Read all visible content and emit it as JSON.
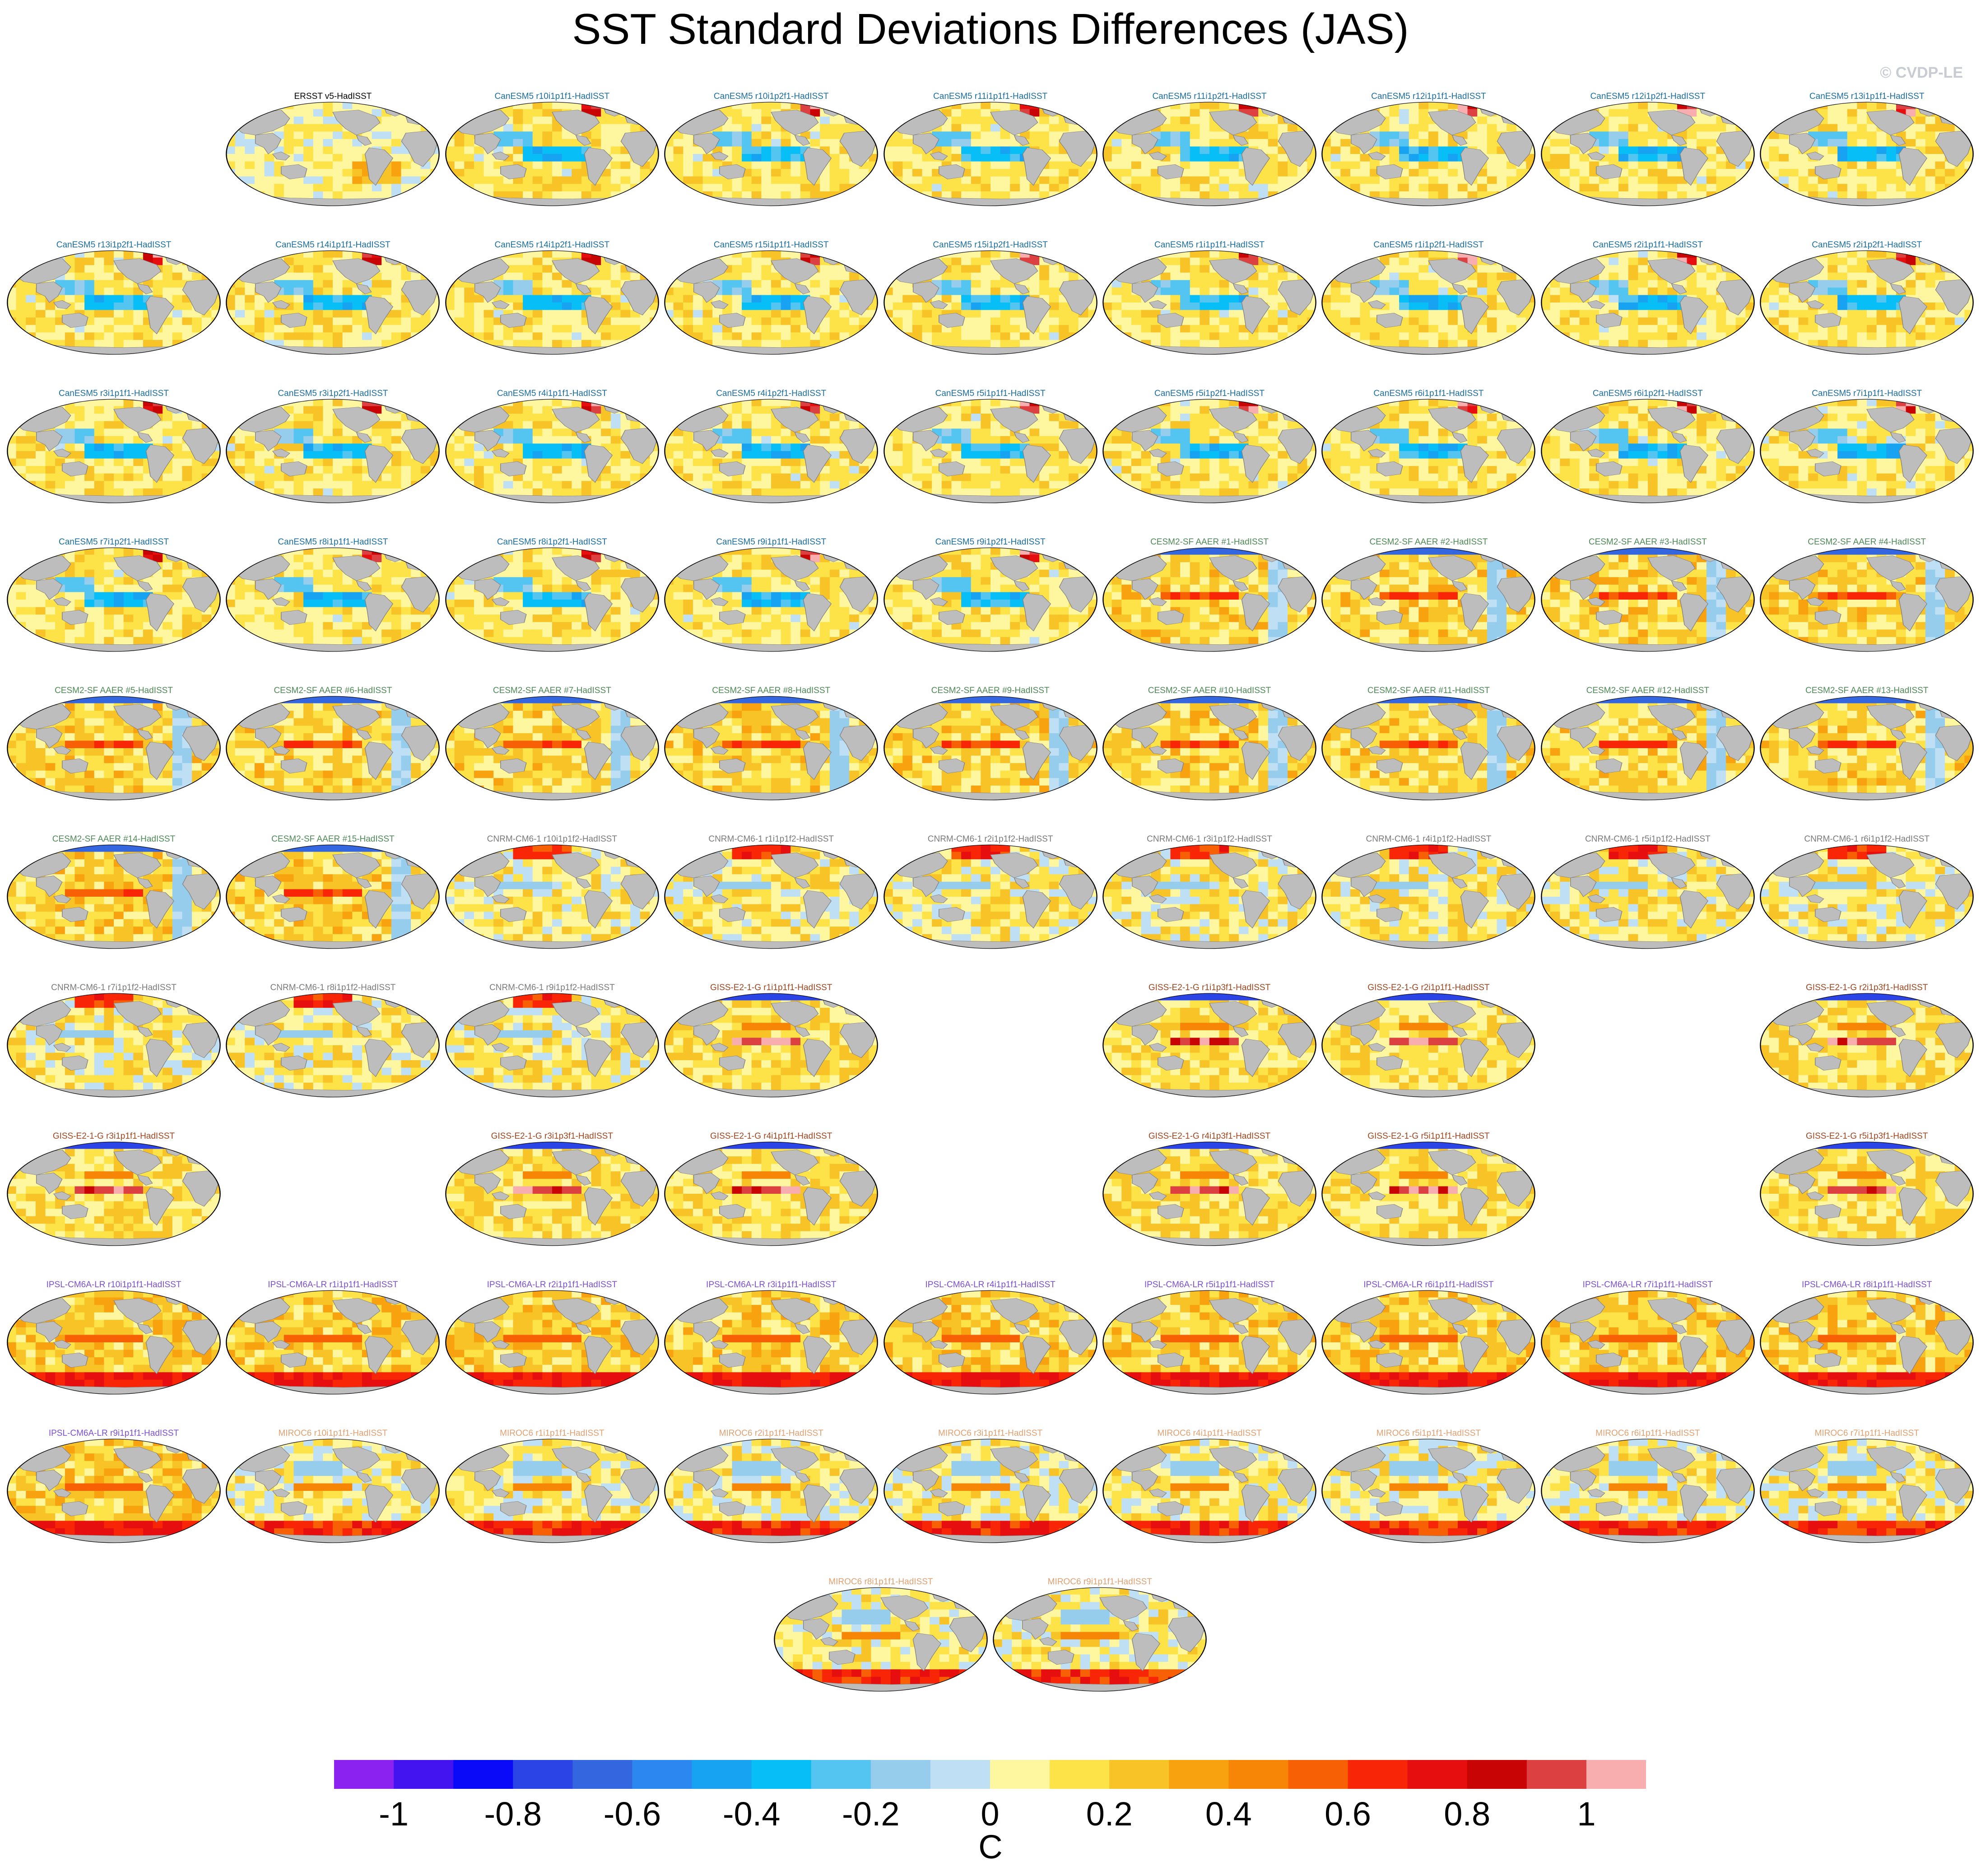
{
  "title": "SST Standard Deviations Differences (JAS)",
  "credit": "© CVDP-LE",
  "chart_data": {
    "type": "heatmap",
    "title": "SST Standard Deviations Differences (JAS)",
    "description_units": "C",
    "colorbar": {
      "units": "C",
      "tick_labels": [
        "-1",
        "-0.8",
        "-0.6",
        "-0.4",
        "-0.2",
        "0",
        "0.2",
        "0.4",
        "0.6",
        "0.8",
        "1"
      ],
      "tick_values": [
        -1,
        -0.8,
        -0.6,
        -0.4,
        -0.2,
        0,
        0.2,
        0.4,
        0.6,
        0.8,
        1
      ],
      "levels": [
        -1.1,
        -1.0,
        -0.9,
        -0.8,
        -0.7,
        -0.6,
        -0.5,
        -0.4,
        -0.3,
        -0.2,
        -0.1,
        0,
        0.1,
        0.2,
        0.3,
        0.4,
        0.5,
        0.6,
        0.7,
        0.8,
        0.9,
        1.0,
        1.1
      ],
      "colors": [
        "#8b22f0",
        "#4414f0",
        "#0a0af8",
        "#2a44e6",
        "#3466e0",
        "#2c88f0",
        "#18a2f2",
        "#08bef6",
        "#54c4f0",
        "#96ccec",
        "#bfe0f4",
        "#fff7a0",
        "#fde248",
        "#f8c326",
        "#f8a210",
        "#f88606",
        "#f86006",
        "#f82606",
        "#e60e0e",
        "#c80404",
        "#dc4040",
        "#f8aeae"
      ]
    },
    "panels": [
      {
        "label": "ERSST v5-HadISST",
        "model": "ERSST",
        "pattern": "obs",
        "row": 0,
        "col": 1,
        "color": "#000000"
      },
      {
        "label": "CanESM5 r10i1p1f1-HadISST",
        "model": "CanESM5",
        "pattern": "can",
        "row": 0,
        "col": 2,
        "color": "#1a6ea0"
      },
      {
        "label": "CanESM5 r10i1p2f1-HadISST",
        "model": "CanESM5",
        "pattern": "can",
        "row": 0,
        "col": 3,
        "color": "#1a6ea0"
      },
      {
        "label": "CanESM5 r11i1p1f1-HadISST",
        "model": "CanESM5",
        "pattern": "can",
        "row": 0,
        "col": 4,
        "color": "#1a6ea0"
      },
      {
        "label": "CanESM5 r11i1p2f1-HadISST",
        "model": "CanESM5",
        "pattern": "can",
        "row": 0,
        "col": 5,
        "color": "#1a6ea0"
      },
      {
        "label": "CanESM5 r12i1p1f1-HadISST",
        "model": "CanESM5",
        "pattern": "can",
        "row": 0,
        "col": 6,
        "color": "#1a6ea0"
      },
      {
        "label": "CanESM5 r12i1p2f1-HadISST",
        "model": "CanESM5",
        "pattern": "can",
        "row": 0,
        "col": 7,
        "color": "#1a6ea0"
      },
      {
        "label": "CanESM5 r13i1p1f1-HadISST",
        "model": "CanESM5",
        "pattern": "can",
        "row": 0,
        "col": 8,
        "color": "#1a6ea0"
      },
      {
        "label": "CanESM5 r13i1p2f1-HadISST",
        "model": "CanESM5",
        "pattern": "can",
        "row": 1,
        "col": 0,
        "color": "#1a6ea0"
      },
      {
        "label": "CanESM5 r14i1p1f1-HadISST",
        "model": "CanESM5",
        "pattern": "can",
        "row": 1,
        "col": 1,
        "color": "#1a6ea0"
      },
      {
        "label": "CanESM5 r14i1p2f1-HadISST",
        "model": "CanESM5",
        "pattern": "can",
        "row": 1,
        "col": 2,
        "color": "#1a6ea0"
      },
      {
        "label": "CanESM5 r15i1p1f1-HadISST",
        "model": "CanESM5",
        "pattern": "can",
        "row": 1,
        "col": 3,
        "color": "#1a6ea0"
      },
      {
        "label": "CanESM5 r15i1p2f1-HadISST",
        "model": "CanESM5",
        "pattern": "can",
        "row": 1,
        "col": 4,
        "color": "#1a6ea0"
      },
      {
        "label": "CanESM5 r1i1p1f1-HadISST",
        "model": "CanESM5",
        "pattern": "can",
        "row": 1,
        "col": 5,
        "color": "#1a6ea0"
      },
      {
        "label": "CanESM5 r1i1p2f1-HadISST",
        "model": "CanESM5",
        "pattern": "can",
        "row": 1,
        "col": 6,
        "color": "#1a6ea0"
      },
      {
        "label": "CanESM5 r2i1p1f1-HadISST",
        "model": "CanESM5",
        "pattern": "can",
        "row": 1,
        "col": 7,
        "color": "#1a6ea0"
      },
      {
        "label": "CanESM5 r2i1p2f1-HadISST",
        "model": "CanESM5",
        "pattern": "can",
        "row": 1,
        "col": 8,
        "color": "#1a6ea0"
      },
      {
        "label": "CanESM5 r3i1p1f1-HadISST",
        "model": "CanESM5",
        "pattern": "can",
        "row": 2,
        "col": 0,
        "color": "#1a6ea0"
      },
      {
        "label": "CanESM5 r3i1p2f1-HadISST",
        "model": "CanESM5",
        "pattern": "can",
        "row": 2,
        "col": 1,
        "color": "#1a6ea0"
      },
      {
        "label": "CanESM5 r4i1p1f1-HadISST",
        "model": "CanESM5",
        "pattern": "can",
        "row": 2,
        "col": 2,
        "color": "#1a6ea0"
      },
      {
        "label": "CanESM5 r4i1p2f1-HadISST",
        "model": "CanESM5",
        "pattern": "can",
        "row": 2,
        "col": 3,
        "color": "#1a6ea0"
      },
      {
        "label": "CanESM5 r5i1p1f1-HadISST",
        "model": "CanESM5",
        "pattern": "can",
        "row": 2,
        "col": 4,
        "color": "#1a6ea0"
      },
      {
        "label": "CanESM5 r5i1p2f1-HadISST",
        "model": "CanESM5",
        "pattern": "can",
        "row": 2,
        "col": 5,
        "color": "#1a6ea0"
      },
      {
        "label": "CanESM5 r6i1p1f1-HadISST",
        "model": "CanESM5",
        "pattern": "can",
        "row": 2,
        "col": 6,
        "color": "#1a6ea0"
      },
      {
        "label": "CanESM5 r6i1p2f1-HadISST",
        "model": "CanESM5",
        "pattern": "can",
        "row": 2,
        "col": 7,
        "color": "#1a6ea0"
      },
      {
        "label": "CanESM5 r7i1p1f1-HadISST",
        "model": "CanESM5",
        "pattern": "can",
        "row": 2,
        "col": 8,
        "color": "#1a6ea0"
      },
      {
        "label": "CanESM5 r7i1p2f1-HadISST",
        "model": "CanESM5",
        "pattern": "can",
        "row": 3,
        "col": 0,
        "color": "#1a6ea0"
      },
      {
        "label": "CanESM5 r8i1p1f1-HadISST",
        "model": "CanESM5",
        "pattern": "can",
        "row": 3,
        "col": 1,
        "color": "#1a6ea0"
      },
      {
        "label": "CanESM5 r8i1p2f1-HadISST",
        "model": "CanESM5",
        "pattern": "can",
        "row": 3,
        "col": 2,
        "color": "#1a6ea0"
      },
      {
        "label": "CanESM5 r9i1p1f1-HadISST",
        "model": "CanESM5",
        "pattern": "can",
        "row": 3,
        "col": 3,
        "color": "#1a6ea0"
      },
      {
        "label": "CanESM5 r9i1p2f1-HadISST",
        "model": "CanESM5",
        "pattern": "can",
        "row": 3,
        "col": 4,
        "color": "#1a6ea0"
      },
      {
        "label": "CESM2-SF AAER #1-HadISST",
        "model": "CESM2-SF AAER",
        "pattern": "cesm",
        "row": 3,
        "col": 5,
        "color": "#4d8a55"
      },
      {
        "label": "CESM2-SF AAER #2-HadISST",
        "model": "CESM2-SF AAER",
        "pattern": "cesm",
        "row": 3,
        "col": 6,
        "color": "#4d8a55"
      },
      {
        "label": "CESM2-SF AAER #3-HadISST",
        "model": "CESM2-SF AAER",
        "pattern": "cesm",
        "row": 3,
        "col": 7,
        "color": "#4d8a55"
      },
      {
        "label": "CESM2-SF AAER #4-HadISST",
        "model": "CESM2-SF AAER",
        "pattern": "cesm",
        "row": 3,
        "col": 8,
        "color": "#4d8a55"
      },
      {
        "label": "CESM2-SF AAER #5-HadISST",
        "model": "CESM2-SF AAER",
        "pattern": "cesm",
        "row": 4,
        "col": 0,
        "color": "#4d8a55"
      },
      {
        "label": "CESM2-SF AAER #6-HadISST",
        "model": "CESM2-SF AAER",
        "pattern": "cesm",
        "row": 4,
        "col": 1,
        "color": "#4d8a55"
      },
      {
        "label": "CESM2-SF AAER #7-HadISST",
        "model": "CESM2-SF AAER",
        "pattern": "cesm",
        "row": 4,
        "col": 2,
        "color": "#4d8a55"
      },
      {
        "label": "CESM2-SF AAER #8-HadISST",
        "model": "CESM2-SF AAER",
        "pattern": "cesm",
        "row": 4,
        "col": 3,
        "color": "#4d8a55"
      },
      {
        "label": "CESM2-SF AAER #9-HadISST",
        "model": "CESM2-SF AAER",
        "pattern": "cesm",
        "row": 4,
        "col": 4,
        "color": "#4d8a55"
      },
      {
        "label": "CESM2-SF AAER #10-HadISST",
        "model": "CESM2-SF AAER",
        "pattern": "cesm",
        "row": 4,
        "col": 5,
        "color": "#4d8a55"
      },
      {
        "label": "CESM2-SF AAER #11-HadISST",
        "model": "CESM2-SF AAER",
        "pattern": "cesm",
        "row": 4,
        "col": 6,
        "color": "#4d8a55"
      },
      {
        "label": "CESM2-SF AAER #12-HadISST",
        "model": "CESM2-SF AAER",
        "pattern": "cesm",
        "row": 4,
        "col": 7,
        "color": "#4d8a55"
      },
      {
        "label": "CESM2-SF AAER #13-HadISST",
        "model": "CESM2-SF AAER",
        "pattern": "cesm",
        "row": 4,
        "col": 8,
        "color": "#4d8a55"
      },
      {
        "label": "CESM2-SF AAER #14-HadISST",
        "model": "CESM2-SF AAER",
        "pattern": "cesm",
        "row": 5,
        "col": 0,
        "color": "#4d8a55"
      },
      {
        "label": "CESM2-SF AAER #15-HadISST",
        "model": "CESM2-SF AAER",
        "pattern": "cesm",
        "row": 5,
        "col": 1,
        "color": "#4d8a55"
      },
      {
        "label": "CNRM-CM6-1 r10i1p1f2-HadISST",
        "model": "CNRM-CM6-1",
        "pattern": "cnrm",
        "row": 5,
        "col": 2,
        "color": "#7a7a7a"
      },
      {
        "label": "CNRM-CM6-1 r1i1p1f2-HadISST",
        "model": "CNRM-CM6-1",
        "pattern": "cnrm",
        "row": 5,
        "col": 3,
        "color": "#7a7a7a"
      },
      {
        "label": "CNRM-CM6-1 r2i1p1f2-HadISST",
        "model": "CNRM-CM6-1",
        "pattern": "cnrm",
        "row": 5,
        "col": 4,
        "color": "#7a7a7a"
      },
      {
        "label": "CNRM-CM6-1 r3i1p1f2-HadISST",
        "model": "CNRM-CM6-1",
        "pattern": "cnrm",
        "row": 5,
        "col": 5,
        "color": "#7a7a7a"
      },
      {
        "label": "CNRM-CM6-1 r4i1p1f2-HadISST",
        "model": "CNRM-CM6-1",
        "pattern": "cnrm",
        "row": 5,
        "col": 6,
        "color": "#7a7a7a"
      },
      {
        "label": "CNRM-CM6-1 r5i1p1f2-HadISST",
        "model": "CNRM-CM6-1",
        "pattern": "cnrm",
        "row": 5,
        "col": 7,
        "color": "#7a7a7a"
      },
      {
        "label": "CNRM-CM6-1 r6i1p1f2-HadISST",
        "model": "CNRM-CM6-1",
        "pattern": "cnrm",
        "row": 5,
        "col": 8,
        "color": "#7a7a7a"
      },
      {
        "label": "CNRM-CM6-1 r7i1p1f2-HadISST",
        "model": "CNRM-CM6-1",
        "pattern": "cnrm",
        "row": 6,
        "col": 0,
        "color": "#7a7a7a"
      },
      {
        "label": "CNRM-CM6-1 r8i1p1f2-HadISST",
        "model": "CNRM-CM6-1",
        "pattern": "cnrm",
        "row": 6,
        "col": 1,
        "color": "#7a7a7a"
      },
      {
        "label": "CNRM-CM6-1 r9i1p1f2-HadISST",
        "model": "CNRM-CM6-1",
        "pattern": "cnrm",
        "row": 6,
        "col": 2,
        "color": "#7a7a7a"
      },
      {
        "label": "GISS-E2-1-G r1i1p1f1-HadISST",
        "model": "GISS-E2-1-G",
        "pattern": "giss",
        "row": 6,
        "col": 3,
        "color": "#a0461e"
      },
      {
        "label": "GISS-E2-1-G r1i1p3f1-HadISST",
        "model": "GISS-E2-1-G",
        "pattern": "giss",
        "row": 6,
        "col": 5,
        "color": "#a0461e"
      },
      {
        "label": "GISS-E2-1-G r2i1p1f1-HadISST",
        "model": "GISS-E2-1-G",
        "pattern": "giss",
        "row": 6,
        "col": 6,
        "color": "#a0461e"
      },
      {
        "label": "GISS-E2-1-G r2i1p3f1-HadISST",
        "model": "GISS-E2-1-G",
        "pattern": "giss",
        "row": 6,
        "col": 8,
        "color": "#a0461e"
      },
      {
        "label": "GISS-E2-1-G r3i1p1f1-HadISST",
        "model": "GISS-E2-1-G",
        "pattern": "giss",
        "row": 7,
        "col": 0,
        "color": "#a0461e"
      },
      {
        "label": "GISS-E2-1-G r3i1p3f1-HadISST",
        "model": "GISS-E2-1-G",
        "pattern": "giss",
        "row": 7,
        "col": 2,
        "color": "#a0461e"
      },
      {
        "label": "GISS-E2-1-G r4i1p1f1-HadISST",
        "model": "GISS-E2-1-G",
        "pattern": "giss",
        "row": 7,
        "col": 3,
        "color": "#a0461e"
      },
      {
        "label": "GISS-E2-1-G r4i1p3f1-HadISST",
        "model": "GISS-E2-1-G",
        "pattern": "giss",
        "row": 7,
        "col": 5,
        "color": "#a0461e"
      },
      {
        "label": "GISS-E2-1-G r5i1p1f1-HadISST",
        "model": "GISS-E2-1-G",
        "pattern": "giss",
        "row": 7,
        "col": 6,
        "color": "#a0461e"
      },
      {
        "label": "GISS-E2-1-G r5i1p3f1-HadISST",
        "model": "GISS-E2-1-G",
        "pattern": "giss",
        "row": 7,
        "col": 8,
        "color": "#a0461e"
      },
      {
        "label": "IPSL-CM6A-LR r10i1p1f1-HadISST",
        "model": "IPSL-CM6A-LR",
        "pattern": "ipsl",
        "row": 8,
        "col": 0,
        "color": "#7b4fd0"
      },
      {
        "label": "IPSL-CM6A-LR r1i1p1f1-HadISST",
        "model": "IPSL-CM6A-LR",
        "pattern": "ipsl",
        "row": 8,
        "col": 1,
        "color": "#7b4fd0"
      },
      {
        "label": "IPSL-CM6A-LR r2i1p1f1-HadISST",
        "model": "IPSL-CM6A-LR",
        "pattern": "ipsl",
        "row": 8,
        "col": 2,
        "color": "#7b4fd0"
      },
      {
        "label": "IPSL-CM6A-LR r3i1p1f1-HadISST",
        "model": "IPSL-CM6A-LR",
        "pattern": "ipsl",
        "row": 8,
        "col": 3,
        "color": "#7b4fd0"
      },
      {
        "label": "IPSL-CM6A-LR r4i1p1f1-HadISST",
        "model": "IPSL-CM6A-LR",
        "pattern": "ipsl",
        "row": 8,
        "col": 4,
        "color": "#7b4fd0"
      },
      {
        "label": "IPSL-CM6A-LR r5i1p1f1-HadISST",
        "model": "IPSL-CM6A-LR",
        "pattern": "ipsl",
        "row": 8,
        "col": 5,
        "color": "#7b4fd0"
      },
      {
        "label": "IPSL-CM6A-LR r6i1p1f1-HadISST",
        "model": "IPSL-CM6A-LR",
        "pattern": "ipsl",
        "row": 8,
        "col": 6,
        "color": "#7b4fd0"
      },
      {
        "label": "IPSL-CM6A-LR r7i1p1f1-HadISST",
        "model": "IPSL-CM6A-LR",
        "pattern": "ipsl",
        "row": 8,
        "col": 7,
        "color": "#7b4fd0"
      },
      {
        "label": "IPSL-CM6A-LR r8i1p1f1-HadISST",
        "model": "IPSL-CM6A-LR",
        "pattern": "ipsl",
        "row": 8,
        "col": 8,
        "color": "#7b4fd0"
      },
      {
        "label": "IPSL-CM6A-LR r9i1p1f1-HadISST",
        "model": "IPSL-CM6A-LR",
        "pattern": "ipsl",
        "row": 9,
        "col": 0,
        "color": "#7b4fd0"
      },
      {
        "label": "MIROC6 r10i1p1f1-HadISST",
        "model": "MIROC6",
        "pattern": "miroc",
        "row": 9,
        "col": 1,
        "color": "#e0a070"
      },
      {
        "label": "MIROC6 r1i1p1f1-HadISST",
        "model": "MIROC6",
        "pattern": "miroc",
        "row": 9,
        "col": 2,
        "color": "#e0a070"
      },
      {
        "label": "MIROC6 r2i1p1f1-HadISST",
        "model": "MIROC6",
        "pattern": "miroc",
        "row": 9,
        "col": 3,
        "color": "#e0a070"
      },
      {
        "label": "MIROC6 r3i1p1f1-HadISST",
        "model": "MIROC6",
        "pattern": "miroc",
        "row": 9,
        "col": 4,
        "color": "#e0a070"
      },
      {
        "label": "MIROC6 r4i1p1f1-HadISST",
        "model": "MIROC6",
        "pattern": "miroc",
        "row": 9,
        "col": 5,
        "color": "#e0a070"
      },
      {
        "label": "MIROC6 r5i1p1f1-HadISST",
        "model": "MIROC6",
        "pattern": "miroc",
        "row": 9,
        "col": 6,
        "color": "#e0a070"
      },
      {
        "label": "MIROC6 r6i1p1f1-HadISST",
        "model": "MIROC6",
        "pattern": "miroc",
        "row": 9,
        "col": 7,
        "color": "#e0a070"
      },
      {
        "label": "MIROC6 r7i1p1f1-HadISST",
        "model": "MIROC6",
        "pattern": "miroc",
        "row": 9,
        "col": 8,
        "color": "#e0a070"
      },
      {
        "label": "MIROC6 r8i1p1f1-HadISST",
        "model": "MIROC6",
        "pattern": "miroc",
        "row": 10,
        "col": 3.5,
        "color": "#e0a070"
      },
      {
        "label": "MIROC6 r9i1p1f1-HadISST",
        "model": "MIROC6",
        "pattern": "miroc",
        "row": 10,
        "col": 4.5,
        "color": "#e0a070"
      }
    ]
  }
}
